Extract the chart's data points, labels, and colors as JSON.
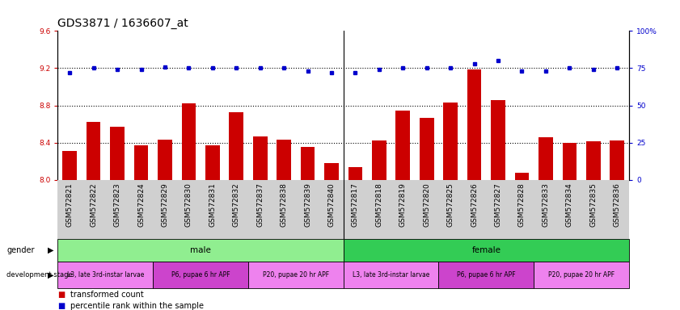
{
  "title": "GDS3871 / 1636607_at",
  "samples": [
    "GSM572821",
    "GSM572822",
    "GSM572823",
    "GSM572824",
    "GSM572829",
    "GSM572830",
    "GSM572831",
    "GSM572832",
    "GSM572837",
    "GSM572838",
    "GSM572839",
    "GSM572840",
    "GSM572817",
    "GSM572818",
    "GSM572819",
    "GSM572820",
    "GSM572825",
    "GSM572826",
    "GSM572827",
    "GSM572828",
    "GSM572833",
    "GSM572834",
    "GSM572835",
    "GSM572836"
  ],
  "bar_values": [
    8.31,
    8.62,
    8.57,
    8.37,
    8.43,
    8.82,
    8.37,
    8.73,
    8.47,
    8.43,
    8.35,
    8.18,
    8.14,
    8.42,
    8.74,
    8.67,
    8.83,
    9.19,
    8.86,
    8.08,
    8.46,
    8.4,
    8.41,
    8.42
  ],
  "percentile_values": [
    72,
    75,
    74,
    74,
    76,
    75,
    75,
    75,
    75,
    75,
    73,
    72,
    72,
    74,
    75,
    75,
    75,
    78,
    80,
    73,
    73,
    75,
    74,
    75
  ],
  "bar_color": "#cc0000",
  "dot_color": "#0000cc",
  "ylim_left": [
    8.0,
    9.6
  ],
  "yticks_left": [
    8.0,
    8.4,
    8.8,
    9.2,
    9.6
  ],
  "ylim_right": [
    0,
    100
  ],
  "yticks_right": [
    0,
    25,
    50,
    75,
    100
  ],
  "ytick_labels_right": [
    "0",
    "25",
    "50",
    "75",
    "100%"
  ],
  "grid_lines": [
    8.4,
    8.8,
    9.2
  ],
  "gender_groups": [
    {
      "label": "male",
      "start": 0,
      "end": 12,
      "color": "#90ee90"
    },
    {
      "label": "female",
      "start": 12,
      "end": 24,
      "color": "#33cc55"
    }
  ],
  "stage_groups": [
    {
      "label": "L3, late 3rd-instar larvae",
      "start": 0,
      "end": 4,
      "color": "#ee82ee"
    },
    {
      "label": "P6, pupae 6 hr APF",
      "start": 4,
      "end": 8,
      "color": "#cc44cc"
    },
    {
      "label": "P20, pupae 20 hr APF",
      "start": 8,
      "end": 12,
      "color": "#ee82ee"
    },
    {
      "label": "L3, late 3rd-instar larvae",
      "start": 12,
      "end": 16,
      "color": "#ee82ee"
    },
    {
      "label": "P6, pupae 6 hr APF",
      "start": 16,
      "end": 20,
      "color": "#cc44cc"
    },
    {
      "label": "P20, pupae 20 hr APF",
      "start": 20,
      "end": 24,
      "color": "#ee82ee"
    }
  ],
  "legend_items": [
    {
      "label": "transformed count",
      "color": "#cc0000"
    },
    {
      "label": "percentile rank within the sample",
      "color": "#0000cc"
    }
  ],
  "background_color": "#ffffff",
  "title_fontsize": 10,
  "tick_fontsize": 6.5,
  "label_fontsize": 7.5,
  "xtick_bg_color": "#d0d0d0"
}
